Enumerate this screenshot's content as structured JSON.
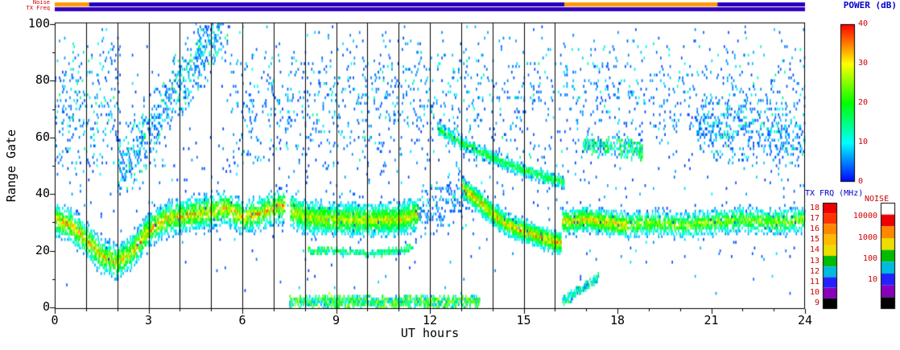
{
  "colors": {
    "label_blue": "#0000cc",
    "label_red": "#cc0000",
    "axis_black": "#000000",
    "strip_blue": "#2200bb",
    "strip_orange": "#ff9900",
    "background": "#ffffff"
  },
  "chart_data": {
    "type": "heatmap",
    "title": "",
    "xlabel": "UT hours",
    "ylabel": "Range Gate",
    "xlim": [
      0,
      24
    ],
    "ylim": [
      0,
      100
    ],
    "xticks": [
      0,
      3,
      6,
      9,
      12,
      15,
      18,
      21,
      24
    ],
    "yticks": [
      0,
      20,
      40,
      60,
      80,
      100
    ],
    "grid": "vertical-hour-lines",
    "hour_gridlines": [
      1,
      2,
      3,
      4,
      5,
      6,
      7,
      8,
      9,
      10,
      11,
      12,
      13,
      14,
      15,
      16
    ],
    "power_colorbar": {
      "label": "POWER (dB)",
      "ticks": [
        40,
        30,
        20,
        10,
        0
      ],
      "range": [
        0,
        40
      ],
      "scale": "rainbow-blue-to-red"
    },
    "tx_colorbar": {
      "label": "TX FRQ (MHz)",
      "ticks": [
        18,
        17,
        16,
        15,
        14,
        13,
        12,
        11,
        10,
        9
      ],
      "colors": [
        "#ee0000",
        "#ff3300",
        "#ff8800",
        "#ffbb00",
        "#eedd00",
        "#00bb00",
        "#00bbdd",
        "#2222ff",
        "#8800bb",
        "#000000"
      ]
    },
    "noise_colorbar": {
      "label": "NOISE",
      "ticks": [
        "10000",
        "1000",
        "100",
        "10"
      ],
      "colors": [
        "#ffffff",
        "#ee0000",
        "#ff8800",
        "#eedd00",
        "#00bb00",
        "#00bbdd",
        "#2222ff",
        "#8800bb",
        "#000000"
      ]
    },
    "strips": {
      "noise_row": {
        "label": "Noise",
        "segments": [
          [
            0,
            1.1,
            "#ff9900"
          ],
          [
            1.1,
            16.3,
            "#2200bb"
          ],
          [
            16.3,
            21.2,
            "#ff9900"
          ],
          [
            21.2,
            24,
            "#2200bb"
          ]
        ]
      },
      "tx_row": {
        "label": "TX Freq",
        "segments": [
          [
            0,
            24,
            "#3300bb"
          ]
        ]
      }
    },
    "features": [
      {
        "name": "morning_band",
        "t0": 0,
        "t1": 7.35,
        "path": [
          [
            0,
            31
          ],
          [
            0.5,
            29
          ],
          [
            1,
            24
          ],
          [
            1.5,
            18
          ],
          [
            2,
            16
          ],
          [
            2.5,
            20
          ],
          [
            3,
            27
          ],
          [
            3.5,
            31
          ],
          [
            4,
            32
          ],
          [
            4.5,
            33
          ],
          [
            5,
            34
          ],
          [
            5.5,
            35
          ],
          [
            6,
            32
          ],
          [
            6.5,
            33
          ],
          [
            7,
            35
          ],
          [
            7.35,
            36
          ]
        ],
        "hw": 7,
        "power": [
          4,
          40
        ],
        "bias": "core",
        "points": 2600
      },
      {
        "name": "midday_band",
        "t0": 7.55,
        "t1": 11.65,
        "path": [
          [
            7.55,
            34
          ],
          [
            8,
            32
          ],
          [
            9,
            31
          ],
          [
            10,
            31
          ],
          [
            11,
            31
          ],
          [
            11.65,
            33
          ]
        ],
        "hw": 6.5,
        "power": [
          6,
          36
        ],
        "bias": "core",
        "points": 2100
      },
      {
        "name": "midday_subband",
        "t0": 8.1,
        "t1": 11.45,
        "path": [
          [
            8.1,
            20
          ],
          [
            9,
            20
          ],
          [
            10,
            19
          ],
          [
            11,
            20
          ],
          [
            11.45,
            21
          ]
        ],
        "hw": 1.3,
        "power": [
          8,
          22
        ],
        "bias": "uniform",
        "points": 260
      },
      {
        "name": "bottom_band",
        "t0": 7.5,
        "t1": 13.6,
        "path": [
          [
            7.5,
            2
          ],
          [
            13.6,
            2
          ]
        ],
        "hw": 2.6,
        "power": [
          5,
          28
        ],
        "bias": "uniform",
        "points": 850
      },
      {
        "name": "bottom_rise",
        "t0": 16.25,
        "t1": 17.4,
        "path": [
          [
            16.25,
            2
          ],
          [
            17.4,
            11
          ]
        ],
        "hw": 2,
        "power": [
          4,
          18
        ],
        "bias": "uniform",
        "points": 150
      },
      {
        "name": "descending_strong",
        "t0": 13.05,
        "t1": 16.2,
        "path": [
          [
            13.05,
            42
          ],
          [
            13.5,
            38
          ],
          [
            14,
            33
          ],
          [
            14.5,
            29
          ],
          [
            15,
            27
          ],
          [
            15.5,
            25
          ],
          [
            16,
            23
          ],
          [
            16.2,
            23
          ]
        ],
        "hw": 4.5,
        "power": [
          6,
          40
        ],
        "bias": "core",
        "points": 1500
      },
      {
        "name": "descending_upper",
        "t0": 12.25,
        "t1": 16.3,
        "path": [
          [
            12.25,
            63
          ],
          [
            13,
            58
          ],
          [
            13.8,
            54
          ],
          [
            14.6,
            50
          ],
          [
            15.4,
            47
          ],
          [
            16.3,
            44
          ]
        ],
        "hw": 2.8,
        "power": [
          4,
          26
        ],
        "bias": "core",
        "points": 650
      },
      {
        "name": "evening_band_strong",
        "t0": 16.25,
        "t1": 18.3,
        "path": [
          [
            16.25,
            30
          ],
          [
            17,
            31
          ],
          [
            17.6,
            30
          ],
          [
            18.3,
            29
          ]
        ],
        "hw": 5,
        "power": [
          6,
          40
        ],
        "bias": "core",
        "points": 900
      },
      {
        "name": "evening_band",
        "t0": 18.3,
        "t1": 24,
        "path": [
          [
            18.3,
            29
          ],
          [
            19,
            30
          ],
          [
            20,
            29
          ],
          [
            21,
            30
          ],
          [
            22,
            31
          ],
          [
            23,
            30
          ],
          [
            24,
            31
          ]
        ],
        "hw": 5.5,
        "power": [
          4,
          32
        ],
        "bias": "core",
        "points": 1300
      },
      {
        "name": "ascending_streaks",
        "t0": 2,
        "t1": 5.6,
        "path": [
          [
            2,
            46
          ],
          [
            2.8,
            58
          ],
          [
            3.6,
            72
          ],
          [
            4.4,
            86
          ],
          [
            5.2,
            98
          ],
          [
            5.6,
            102
          ]
        ],
        "hw": 14,
        "power": [
          3,
          20
        ],
        "bias": "low",
        "points": 620
      },
      {
        "name": "early_high_scatter",
        "t0": 0,
        "t1": 2.1,
        "path": [
          [
            0,
            72
          ],
          [
            2.1,
            72
          ]
        ],
        "hw": 28,
        "power": [
          3,
          18
        ],
        "bias": "low",
        "points": 240
      },
      {
        "name": "mid_high_scatter",
        "t0": 5.6,
        "t1": 12.3,
        "path": [
          [
            5.6,
            74
          ],
          [
            12.3,
            74
          ]
        ],
        "hw": 27,
        "power": [
          3,
          16
        ],
        "bias": "low",
        "points": 520
      },
      {
        "name": "noon_scatter",
        "t0": 11.6,
        "t1": 13.2,
        "path": [
          [
            11.6,
            33
          ],
          [
            13.2,
            40
          ]
        ],
        "hw": 12,
        "power": [
          3,
          14
        ],
        "bias": "low",
        "points": 160
      },
      {
        "name": "late_high_scatter",
        "t0": 12.3,
        "t1": 24,
        "path": [
          [
            12.3,
            76
          ],
          [
            24,
            76
          ]
        ],
        "hw": 26,
        "power": [
          3,
          16
        ],
        "bias": "low",
        "points": 700
      },
      {
        "name": "night_cluster",
        "t0": 20.5,
        "t1": 24,
        "path": [
          [
            20.5,
            64
          ],
          [
            22,
            62
          ],
          [
            24,
            59
          ]
        ],
        "hw": 12,
        "power": [
          3,
          18
        ],
        "bias": "low",
        "points": 380
      },
      {
        "name": "evening_mid_blobs",
        "t0": 16.9,
        "t1": 18.8,
        "path": [
          [
            16.9,
            57
          ],
          [
            17.8,
            57
          ],
          [
            18.8,
            55
          ]
        ],
        "hw": 4.5,
        "power": [
          4,
          22
        ],
        "bias": "uniform",
        "points": 240
      },
      {
        "name": "background_speckle",
        "t0": 0,
        "t1": 24,
        "path": [
          [
            0,
            50
          ],
          [
            24,
            50
          ]
        ],
        "hw": 50,
        "power": [
          2,
          12
        ],
        "bias": "low",
        "points": 800
      }
    ]
  }
}
